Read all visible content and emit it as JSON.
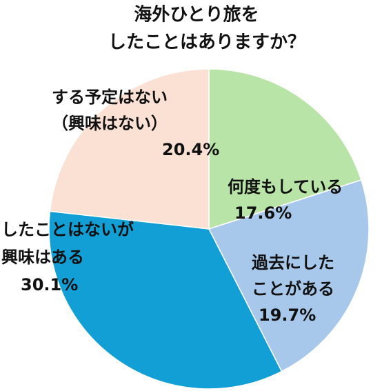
{
  "chart_data": {
    "type": "pie",
    "title": "海外ひとり旅を",
    "subtitle": "したことはありますか？",
    "categories": [
      [
        "何度もしている"
      ],
      [
        "過去にした",
        "ことがある"
      ],
      [
        "したことはないが",
        "興味はある"
      ],
      [
        "する予定はない",
        "（興味はない）"
      ]
    ],
    "values": [
      17.6,
      19.7,
      30.1,
      20.4
    ],
    "value_labels": [
      "17.6%",
      "19.7%",
      "30.1%",
      "20.4%"
    ],
    "colors": [
      "#b9e4a7",
      "#a7c8ea",
      "#129fd6",
      "#fbe1d4"
    ]
  }
}
